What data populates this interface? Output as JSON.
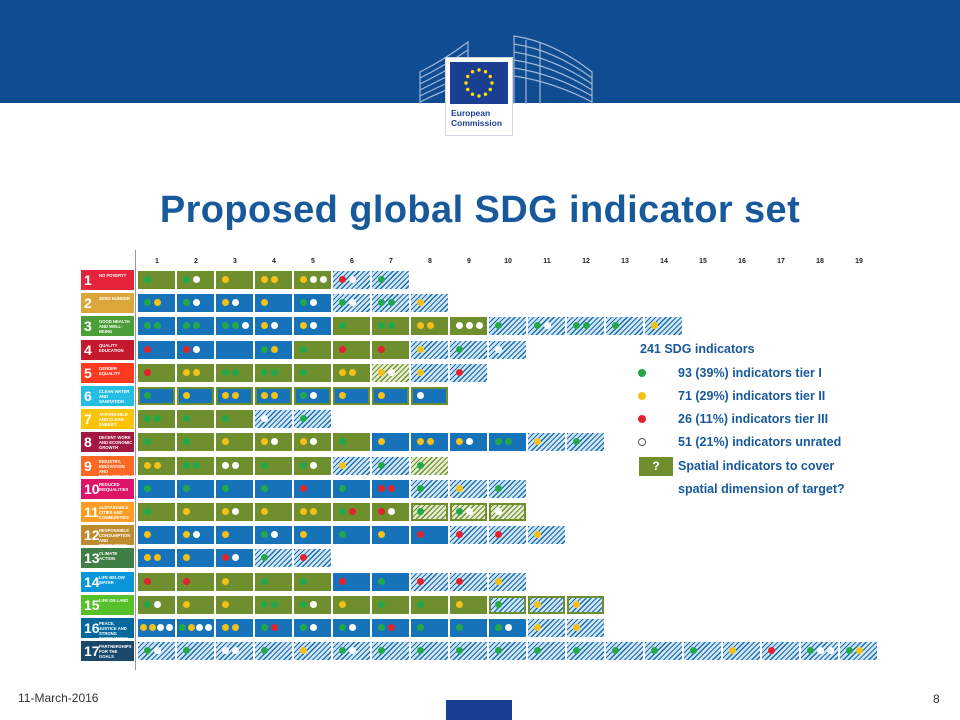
{
  "header": {
    "logo_text_line1": "European",
    "logo_text_line2": "Commission"
  },
  "title": "Proposed global SDG indicator set",
  "columns": [
    "1",
    "2",
    "3",
    "4",
    "5",
    "6",
    "7",
    "8",
    "9",
    "10",
    "11",
    "12",
    "13",
    "14",
    "15",
    "16",
    "17",
    "18",
    "19"
  ],
  "goals": [
    {
      "num": "1",
      "label": "NO POVERTY",
      "color": "#e5243b"
    },
    {
      "num": "2",
      "label": "ZERO HUNGER",
      "color": "#dda63a"
    },
    {
      "num": "3",
      "label": "GOOD HEALTH AND WELL-BEING",
      "color": "#4c9f38"
    },
    {
      "num": "4",
      "label": "QUALITY EDUCATION",
      "color": "#c5192d"
    },
    {
      "num": "5",
      "label": "GENDER EQUALITY",
      "color": "#ff3a21"
    },
    {
      "num": "6",
      "label": "CLEAN WATER AND SANITATION",
      "color": "#26bde2"
    },
    {
      "num": "7",
      "label": "AFFORDABLE AND CLEAN ENERGY",
      "color": "#fcc30b"
    },
    {
      "num": "8",
      "label": "DECENT WORK AND ECONOMIC GROWTH",
      "color": "#a21942"
    },
    {
      "num": "9",
      "label": "INDUSTRY, INNOVATION AND INFRASTRUCTURE",
      "color": "#fd6925"
    },
    {
      "num": "10",
      "label": "REDUCED INEQUALITIES",
      "color": "#dd1367"
    },
    {
      "num": "11",
      "label": "SUSTAINABLE CITIES AND COMMUNITIES",
      "color": "#fd9d24"
    },
    {
      "num": "12",
      "label": "RESPONSIBLE CONSUMPTION AND PRODUCTION",
      "color": "#bf8b2e"
    },
    {
      "num": "13",
      "label": "CLIMATE ACTION",
      "color": "#3f7e44"
    },
    {
      "num": "14",
      "label": "LIFE BELOW WATER",
      "color": "#0a97d9"
    },
    {
      "num": "15",
      "label": "LIFE ON LAND",
      "color": "#56c02b"
    },
    {
      "num": "16",
      "label": "PEACE, JUSTICE AND STRONG INSTITUTIONS",
      "color": "#00689d"
    },
    {
      "num": "17",
      "label": "PARTNERSHIPS FOR THE GOALS",
      "color": "#19486a"
    }
  ],
  "matrix": [
    {
      "cells": [
        [
          "G",
          "g"
        ],
        [
          "G",
          "gw"
        ],
        [
          "G",
          "y"
        ],
        [
          "G",
          "yy"
        ],
        [
          "G",
          "yww"
        ],
        [
          "H",
          "rw"
        ],
        [
          "H",
          "g"
        ]
      ]
    },
    {
      "cells": [
        [
          "B",
          "gy"
        ],
        [
          "B",
          "gw"
        ],
        [
          "B",
          "yw"
        ],
        [
          "B",
          "y"
        ],
        [
          "B",
          "gw"
        ],
        [
          "H",
          "gw"
        ],
        [
          "H",
          "gg"
        ],
        [
          "H",
          "y"
        ]
      ]
    },
    {
      "cells": [
        [
          "B",
          "gg"
        ],
        [
          "B",
          "gg"
        ],
        [
          "B",
          "ggw"
        ],
        [
          "B",
          "yw"
        ],
        [
          "B",
          "yw"
        ],
        [
          "G",
          "g"
        ],
        [
          "G",
          "gg"
        ],
        [
          "G",
          "yy"
        ],
        [
          "G",
          "www"
        ],
        [
          "H",
          "g"
        ],
        [
          "H",
          "gw"
        ],
        [
          "H",
          "gg"
        ],
        [
          "H",
          "g"
        ],
        [
          "H",
          "y"
        ]
      ]
    },
    {
      "cells": [
        [
          "B",
          "r"
        ],
        [
          "B",
          "rw"
        ],
        [
          "B",
          ""
        ],
        [
          "B",
          "gy"
        ],
        [
          "G",
          "g"
        ],
        [
          "G",
          "r"
        ],
        [
          "G",
          "r"
        ],
        [
          "H",
          "y"
        ],
        [
          "H",
          "g"
        ],
        [
          "H",
          "w"
        ]
      ]
    },
    {
      "cells": [
        [
          "G",
          "r"
        ],
        [
          "G",
          "yy"
        ],
        [
          "G",
          "gg"
        ],
        [
          "G",
          "gg"
        ],
        [
          "G",
          "g"
        ],
        [
          "G",
          "yy"
        ],
        [
          "HG",
          "yw"
        ],
        [
          "H",
          "y"
        ],
        [
          "H",
          "r"
        ]
      ]
    },
    {
      "out": true,
      "cells": [
        [
          "B",
          "g"
        ],
        [
          "B",
          "y"
        ],
        [
          "B",
          "yy"
        ],
        [
          "B",
          "yy"
        ],
        [
          "B",
          "gw"
        ],
        [
          "B",
          "y"
        ],
        [
          "B",
          "y"
        ],
        [
          "B",
          "w"
        ]
      ]
    },
    {
      "cells": [
        [
          "G",
          "gg"
        ],
        [
          "G",
          "g"
        ],
        [
          "G",
          "g"
        ],
        [
          "H",
          "w"
        ],
        [
          "H",
          "g"
        ]
      ]
    },
    {
      "cells": [
        [
          "G",
          "g"
        ],
        [
          "G",
          "g"
        ],
        [
          "G",
          "y"
        ],
        [
          "G",
          "yw"
        ],
        [
          "G",
          "yw"
        ],
        [
          "G",
          "g"
        ],
        [
          "B",
          "y"
        ],
        [
          "B",
          "yy"
        ],
        [
          "B",
          "yw"
        ],
        [
          "B",
          "gg"
        ],
        [
          "H",
          "y"
        ],
        [
          "H",
          "g"
        ]
      ]
    },
    {
      "cells": [
        [
          "G",
          "yy"
        ],
        [
          "G",
          "gg"
        ],
        [
          "G",
          "ww"
        ],
        [
          "G",
          "g"
        ],
        [
          "G",
          "gw"
        ],
        [
          "H",
          "y"
        ],
        [
          "H",
          "g"
        ],
        [
          "HG",
          "g"
        ]
      ]
    },
    {
      "cells": [
        [
          "B",
          "g"
        ],
        [
          "B",
          "g"
        ],
        [
          "B",
          "g"
        ],
        [
          "B",
          "g"
        ],
        [
          "B",
          "r"
        ],
        [
          "B",
          "g"
        ],
        [
          "B",
          "rr"
        ],
        [
          "H",
          "g"
        ],
        [
          "H",
          "y"
        ],
        [
          "H",
          "g"
        ]
      ]
    },
    {
      "out": true,
      "cells": [
        [
          "G",
          "g"
        ],
        [
          "G",
          "y"
        ],
        [
          "G",
          "yw"
        ],
        [
          "G",
          "y"
        ],
        [
          "G",
          "yy"
        ],
        [
          "G",
          "gr"
        ],
        [
          "G",
          "rw"
        ],
        [
          "HG",
          "g"
        ],
        [
          "HG",
          "gw"
        ],
        [
          "HG",
          "w"
        ]
      ]
    },
    {
      "cells": [
        [
          "B",
          "y"
        ],
        [
          "B",
          "yw"
        ],
        [
          "B",
          "y"
        ],
        [
          "B",
          "gw"
        ],
        [
          "B",
          "y"
        ],
        [
          "B",
          "g"
        ],
        [
          "B",
          "y"
        ],
        [
          "B",
          "r"
        ],
        [
          "H",
          "r"
        ],
        [
          "H",
          "r"
        ],
        [
          "H",
          "y"
        ]
      ]
    },
    {
      "cells": [
        [
          "B",
          "yy"
        ],
        [
          "B",
          "y"
        ],
        [
          "B",
          "rw"
        ],
        [
          "H",
          "g"
        ],
        [
          "H",
          "r"
        ]
      ]
    },
    {
      "cells": [
        [
          "G",
          "r"
        ],
        [
          "G",
          "r"
        ],
        [
          "G",
          "y"
        ],
        [
          "G",
          "g"
        ],
        [
          "G",
          "g"
        ],
        [
          "B",
          "r"
        ],
        [
          "B",
          "g"
        ],
        [
          "H",
          "r"
        ],
        [
          "H",
          "r"
        ],
        [
          "H",
          "y"
        ]
      ]
    },
    {
      "out": true,
      "cells": [
        [
          "G",
          "gw"
        ],
        [
          "G",
          "y"
        ],
        [
          "G",
          "y"
        ],
        [
          "G",
          "gg"
        ],
        [
          "G",
          "gw"
        ],
        [
          "G",
          "y"
        ],
        [
          "G",
          "g"
        ],
        [
          "G",
          "g"
        ],
        [
          "G",
          "y"
        ],
        [
          "H",
          "g"
        ],
        [
          "H",
          "y"
        ],
        [
          "H",
          "y"
        ]
      ]
    },
    {
      "cells": [
        [
          "B",
          "yyww"
        ],
        [
          "B",
          "gyww"
        ],
        [
          "B",
          "yy"
        ],
        [
          "B",
          "gr"
        ],
        [
          "B",
          "gw"
        ],
        [
          "B",
          "gw"
        ],
        [
          "B",
          "gr"
        ],
        [
          "B",
          "g"
        ],
        [
          "B",
          "g"
        ],
        [
          "B",
          "gw"
        ],
        [
          "H",
          "y"
        ],
        [
          "H",
          "y"
        ]
      ]
    },
    {
      "cells": [
        [
          "H",
          "gw"
        ],
        [
          "H",
          "g"
        ],
        [
          "H",
          "ww"
        ],
        [
          "H",
          "g"
        ],
        [
          "H",
          "y"
        ],
        [
          "H",
          "gw"
        ],
        [
          "H",
          "g"
        ],
        [
          "H",
          "g"
        ],
        [
          "H",
          "g"
        ],
        [
          "H",
          "g"
        ],
        [
          "H",
          "g"
        ],
        [
          "H",
          "g"
        ],
        [
          "H",
          "g"
        ],
        [
          "H",
          "g"
        ],
        [
          "H",
          "g"
        ],
        [
          "H",
          "y"
        ],
        [
          "H",
          "r"
        ],
        [
          "H",
          "gww"
        ],
        [
          "H",
          "gy"
        ]
      ]
    }
  ],
  "legend": {
    "total": "241 SDG indicators",
    "tier1": "93 (39%) indicators tier I",
    "tier2": "71 (29%) indicators tier II",
    "tier3": "26 (11%) indicators tier III",
    "unrated": "51 (21%) indicators unrated",
    "spatial_symbol": "?",
    "spatial_line1": "Spatial indicators to cover",
    "spatial_line2": "spatial dimension of target?",
    "colors": {
      "tier1": "#22a84a",
      "tier2": "#f5c118",
      "tier3": "#e3222b",
      "unrated": "#ffffff"
    }
  },
  "footer": {
    "date": "11-March-2016",
    "page": "8"
  }
}
